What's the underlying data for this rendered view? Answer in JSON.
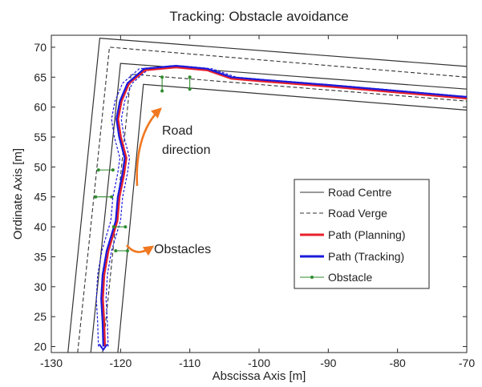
{
  "chart_data": {
    "type": "line",
    "title": "Tracking: Obstacle avoidance",
    "xlabel": "Abscissa Axis [m]",
    "ylabel": "Ordinate Axis [m]",
    "xlim": [
      -130,
      -70
    ],
    "ylim": [
      19,
      72
    ],
    "xticks": [
      -130,
      -120,
      -110,
      -100,
      -90,
      -80,
      -70
    ],
    "yticks": [
      20,
      25,
      30,
      35,
      40,
      45,
      50,
      55,
      60,
      65,
      70
    ],
    "grid": false,
    "legend_position": "lower-right",
    "colors": {
      "road_centre": "#333333",
      "road_verge": "#333333",
      "path_planning": "#e8202a",
      "path_tracking": "#1a1adc",
      "obstacle": "#2e8b2e",
      "annotation": "#f07820"
    },
    "series": [
      {
        "name": "Road Centre",
        "style": "solid",
        "lines": [
          [
            [
              -127.6,
              19
            ],
            [
              -123.0,
              71.5
            ],
            [
              -70,
              66.8
            ]
          ],
          [
            [
              -120.4,
              19
            ],
            [
              -116.7,
              63.8
            ],
            [
              -70,
              59.5
            ]
          ],
          [
            [
              -124.3,
              19
            ],
            [
              -120.0,
              67.3
            ],
            [
              -70,
              63.0
            ]
          ]
        ]
      },
      {
        "name": "Road Verge",
        "style": "dashed",
        "lines": [
          [
            [
              -126.2,
              19
            ],
            [
              -121.6,
              70.0
            ],
            [
              -70,
              65.0
            ]
          ],
          [
            [
              -122.6,
              19
            ],
            [
              -118.5,
              65.5
            ],
            [
              -70,
              61.0
            ]
          ]
        ]
      },
      {
        "name": "Path (Planning)",
        "style": "solid",
        "points": [
          [
            -122.3,
            20
          ],
          [
            -122.4,
            24
          ],
          [
            -122.6,
            28
          ],
          [
            -122.4,
            32
          ],
          [
            -121.8,
            36
          ],
          [
            -120.5,
            41
          ],
          [
            -120.2,
            45
          ],
          [
            -119.5,
            49
          ],
          [
            -119.2,
            51.5
          ],
          [
            -120.0,
            55
          ],
          [
            -120.4,
            58
          ],
          [
            -119.9,
            61
          ],
          [
            -118.8,
            64
          ],
          [
            -116.5,
            66.2
          ],
          [
            -112,
            66.7
          ],
          [
            -107.5,
            66.2
          ],
          [
            -104,
            64.8
          ],
          [
            -100,
            64.4
          ],
          [
            -90,
            63.5
          ],
          [
            -80,
            62.5
          ],
          [
            -70,
            61.5
          ]
        ]
      },
      {
        "name": "Path (Tracking)",
        "style": "solid",
        "points": [
          [
            -122.5,
            20
          ],
          [
            -122.6,
            24
          ],
          [
            -122.8,
            28
          ],
          [
            -122.6,
            32
          ],
          [
            -122.0,
            36
          ],
          [
            -120.7,
            41
          ],
          [
            -120.4,
            45
          ],
          [
            -119.7,
            49
          ],
          [
            -119.4,
            51.5
          ],
          [
            -120.2,
            55
          ],
          [
            -120.6,
            58
          ],
          [
            -120.1,
            61
          ],
          [
            -119.0,
            64
          ],
          [
            -116.6,
            66.4
          ],
          [
            -112,
            66.9
          ],
          [
            -107.5,
            66.4
          ],
          [
            -104,
            65.0
          ],
          [
            -100,
            64.6
          ],
          [
            -90,
            63.7
          ],
          [
            -80,
            62.7
          ],
          [
            -70,
            61.7
          ]
        ]
      },
      {
        "name": "Obstacle",
        "style": "marker-segment",
        "segments": [
          [
            [
              -123.2,
              49.5
            ],
            [
              -121.1,
              49.5
            ]
          ],
          [
            [
              -123.6,
              45.0
            ],
            [
              -121.3,
              45.0
            ]
          ],
          [
            [
              -121.0,
              40.0
            ],
            [
              -119.3,
              40.0
            ]
          ],
          [
            [
              -120.7,
              36.0
            ],
            [
              -119.0,
              36.0
            ]
          ],
          [
            [
              -114.0,
              65.0
            ],
            [
              -114.0,
              62.7
            ]
          ],
          [
            [
              -110.0,
              65.0
            ],
            [
              -110.0,
              63.0
            ]
          ]
        ]
      }
    ],
    "annotations": [
      {
        "text_lines": [
          "Road",
          "direction"
        ],
        "arrow": "curved-up",
        "color": "#f07820"
      },
      {
        "text_lines": [
          "Obstacles"
        ],
        "arrow": "curved-right",
        "color": "#f07820"
      }
    ]
  }
}
